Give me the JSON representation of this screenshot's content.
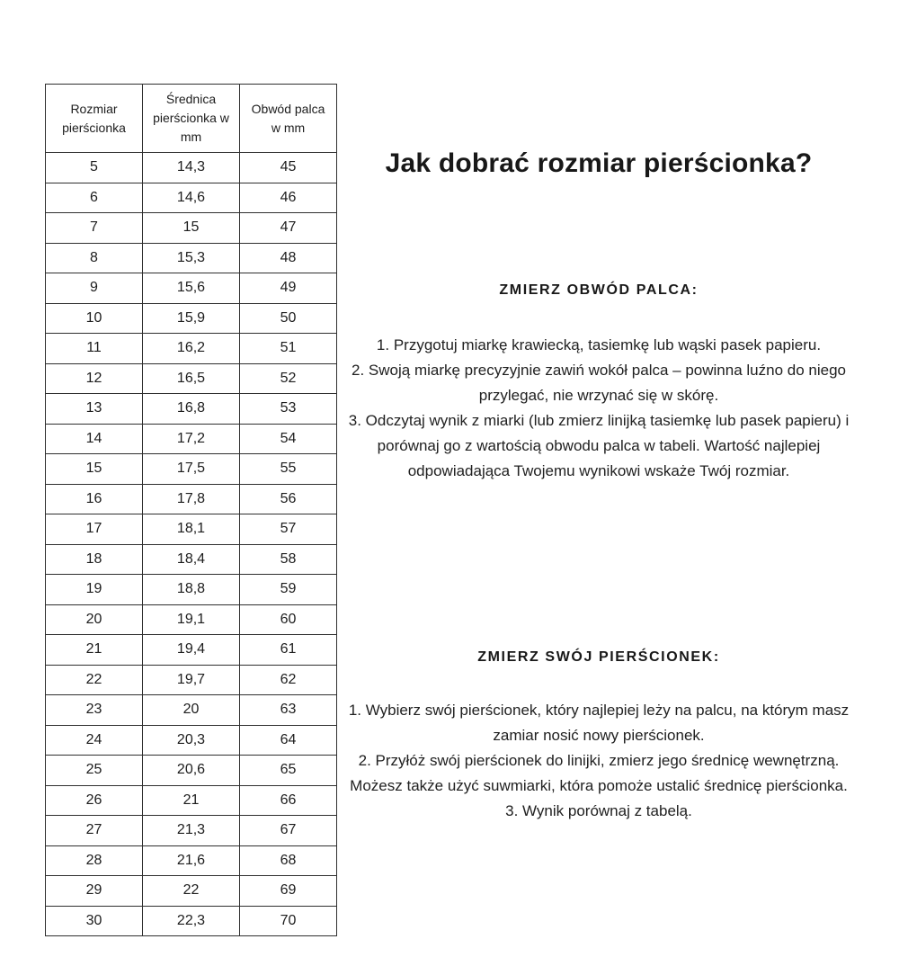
{
  "page": {
    "background": "#ffffff",
    "text_color": "#1d1d1d",
    "border_color": "#2f2f2f"
  },
  "size_table": {
    "columns": [
      "Rozmiar pierścionka",
      "Średnica pierścionka w mm",
      "Obwód palca w mm"
    ],
    "rows": [
      [
        "5",
        "14,3",
        "45"
      ],
      [
        "6",
        "14,6",
        "46"
      ],
      [
        "7",
        "15",
        "47"
      ],
      [
        "8",
        "15,3",
        "48"
      ],
      [
        "9",
        "15,6",
        "49"
      ],
      [
        "10",
        "15,9",
        "50"
      ],
      [
        "11",
        "16,2",
        "51"
      ],
      [
        "12",
        "16,5",
        "52"
      ],
      [
        "13",
        "16,8",
        "53"
      ],
      [
        "14",
        "17,2",
        "54"
      ],
      [
        "15",
        "17,5",
        "55"
      ],
      [
        "16",
        "17,8",
        "56"
      ],
      [
        "17",
        "18,1",
        "57"
      ],
      [
        "18",
        "18,4",
        "58"
      ],
      [
        "19",
        "18,8",
        "59"
      ],
      [
        "20",
        "19,1",
        "60"
      ],
      [
        "21",
        "19,4",
        "61"
      ],
      [
        "22",
        "19,7",
        "62"
      ],
      [
        "23",
        "20",
        "63"
      ],
      [
        "24",
        "20,3",
        "64"
      ],
      [
        "25",
        "20,6",
        "65"
      ],
      [
        "26",
        "21",
        "66"
      ],
      [
        "27",
        "21,3",
        "67"
      ],
      [
        "28",
        "21,6",
        "68"
      ],
      [
        "29",
        "22",
        "69"
      ],
      [
        "30",
        "22,3",
        "70"
      ]
    ]
  },
  "guide": {
    "title": "Jak dobrać rozmiar pierścionka?",
    "sections": [
      {
        "heading": "ZMIERZ OBWÓD PALCA:",
        "steps": [
          "1. Przygotuj miarkę krawiecką, tasiemkę lub wąski pasek papieru.",
          "2. Swoją miarkę precyzyjnie zawiń wokół palca – powinna luźno do niego przylegać, nie wrzynać się w skórę.",
          "3. Odczytaj wynik z miarki (lub zmierz linijką tasiemkę lub pasek papieru) i porównaj go z wartością obwodu palca w tabeli. Wartość najlepiej odpowiadająca Twojemu wynikowi wskaże Twój rozmiar."
        ]
      },
      {
        "heading": "ZMIERZ SWÓJ PIERŚCIONEK:",
        "steps": [
          "1.  Wybierz swój pierścionek, który najlepiej leży na palcu, na którym masz zamiar nosić nowy pierścionek.",
          "2. Przyłóż swój pierścionek do linijki, zmierz jego średnicę wewnętrzną. Możesz także użyć suwmiarki, która pomoże ustalić średnicę pierścionka.",
          "3. Wynik porównaj z tabelą."
        ]
      }
    ]
  }
}
